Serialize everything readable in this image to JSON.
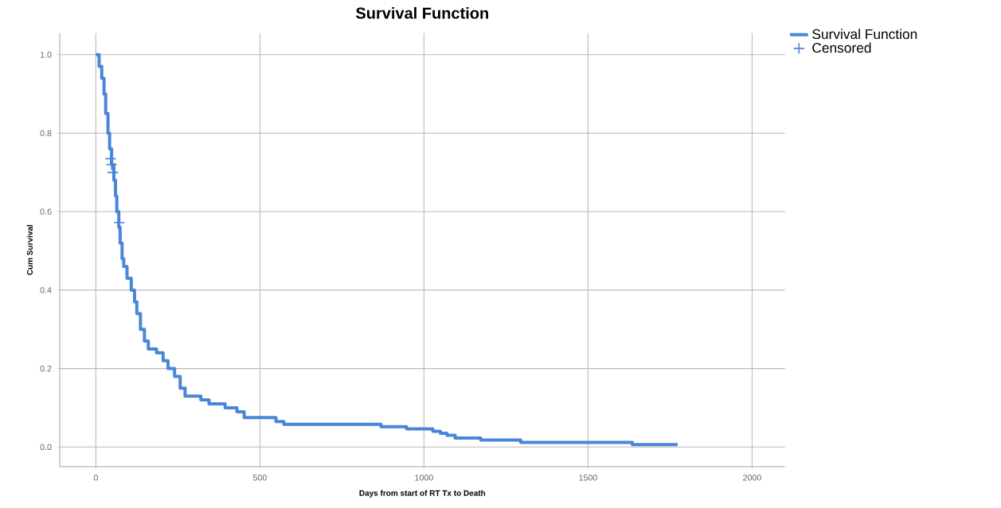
{
  "chart_data": {
    "type": "step",
    "title": "Survival Function",
    "xlabel": "Days from start of RT Tx to Death",
    "ylabel": "Cum Survival",
    "xlim": [
      -110,
      2100
    ],
    "ylim": [
      -0.05,
      1.055
    ],
    "xticks": [
      0,
      500,
      1000,
      1500,
      2000
    ],
    "yticks": [
      {
        "value": 0,
        "label": "0.0"
      },
      {
        "value": 0.2,
        "label": "0.2"
      },
      {
        "value": 0.4,
        "label": "0.4"
      },
      {
        "value": 0.6,
        "label": "0.6"
      },
      {
        "value": 0.8,
        "label": "0.8"
      },
      {
        "value": 1,
        "label": "1.0"
      }
    ],
    "grid": true,
    "legend": "top right",
    "series": [
      {
        "name": "Survival Function",
        "color": "#4a86d8",
        "x": [
          0,
          10,
          18,
          25,
          30,
          37,
          42,
          48,
          55,
          60,
          64,
          70,
          74,
          80,
          85,
          95,
          108,
          118,
          125,
          136,
          148,
          160,
          185,
          205,
          220,
          240,
          257,
          272,
          320,
          345,
          394,
          430,
          452,
          549,
          573,
          869,
          947,
          1027,
          1050,
          1070,
          1095,
          1173,
          1295,
          1635,
          1773
        ],
        "values": [
          1.0,
          0.97,
          0.94,
          0.9,
          0.85,
          0.8,
          0.76,
          0.72,
          0.68,
          0.64,
          0.6,
          0.56,
          0.52,
          0.48,
          0.46,
          0.43,
          0.4,
          0.37,
          0.34,
          0.3,
          0.27,
          0.25,
          0.24,
          0.22,
          0.2,
          0.18,
          0.15,
          0.13,
          0.12,
          0.11,
          0.1,
          0.09,
          0.075,
          0.065,
          0.058,
          0.052,
          0.046,
          0.04,
          0.035,
          0.03,
          0.023,
          0.018,
          0.012,
          0.006,
          0.006
        ]
      },
      {
        "name": "Censored",
        "type": "scatter",
        "marker": "cross",
        "color": "#4a86d8",
        "x": [
          45,
          48,
          52,
          71
        ],
        "values": [
          0.735,
          0.72,
          0.7,
          0.572
        ]
      }
    ]
  }
}
